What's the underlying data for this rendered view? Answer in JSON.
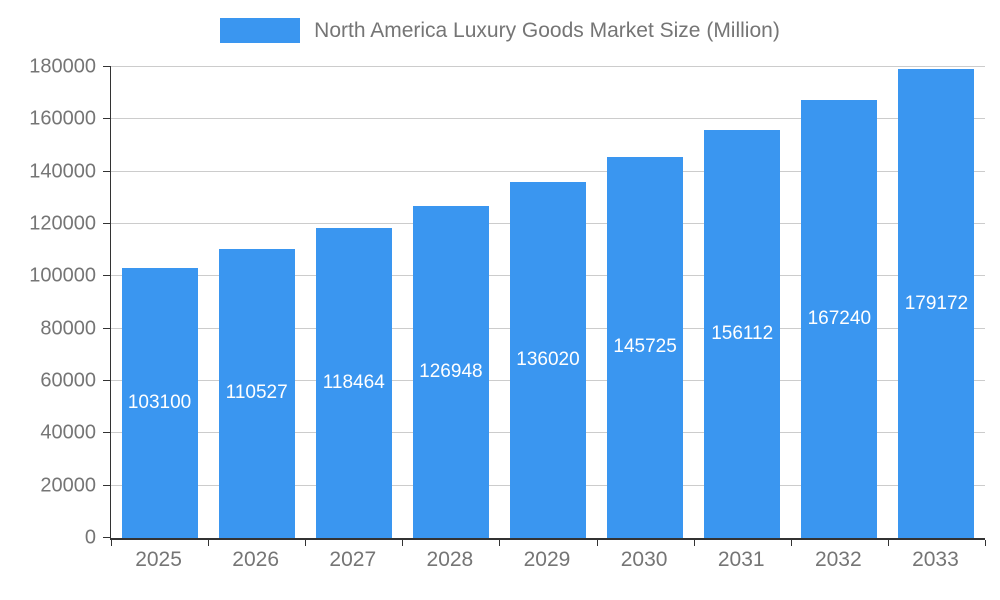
{
  "chart_data": {
    "type": "bar",
    "title": "North America Luxury Goods Market Size (Million)",
    "categories": [
      "2025",
      "2026",
      "2027",
      "2028",
      "2029",
      "2030",
      "2031",
      "2032",
      "2033"
    ],
    "values": [
      103100,
      110527,
      118464,
      126948,
      136020,
      145725,
      156112,
      167240,
      179172
    ],
    "xlabel": "",
    "ylabel": "",
    "ylim": [
      0,
      180000
    ],
    "ytick_step": 20000,
    "yticks": [
      0,
      20000,
      40000,
      60000,
      80000,
      100000,
      120000,
      140000,
      160000,
      180000
    ],
    "grid": true,
    "legend_position": "top",
    "bar_color": "#3A96F0",
    "bar_value_label_color": "#FFFFFF",
    "axis_text_color": "#757575",
    "gridline_color": "#CCCCCC",
    "axis_line_color": "#333333"
  }
}
